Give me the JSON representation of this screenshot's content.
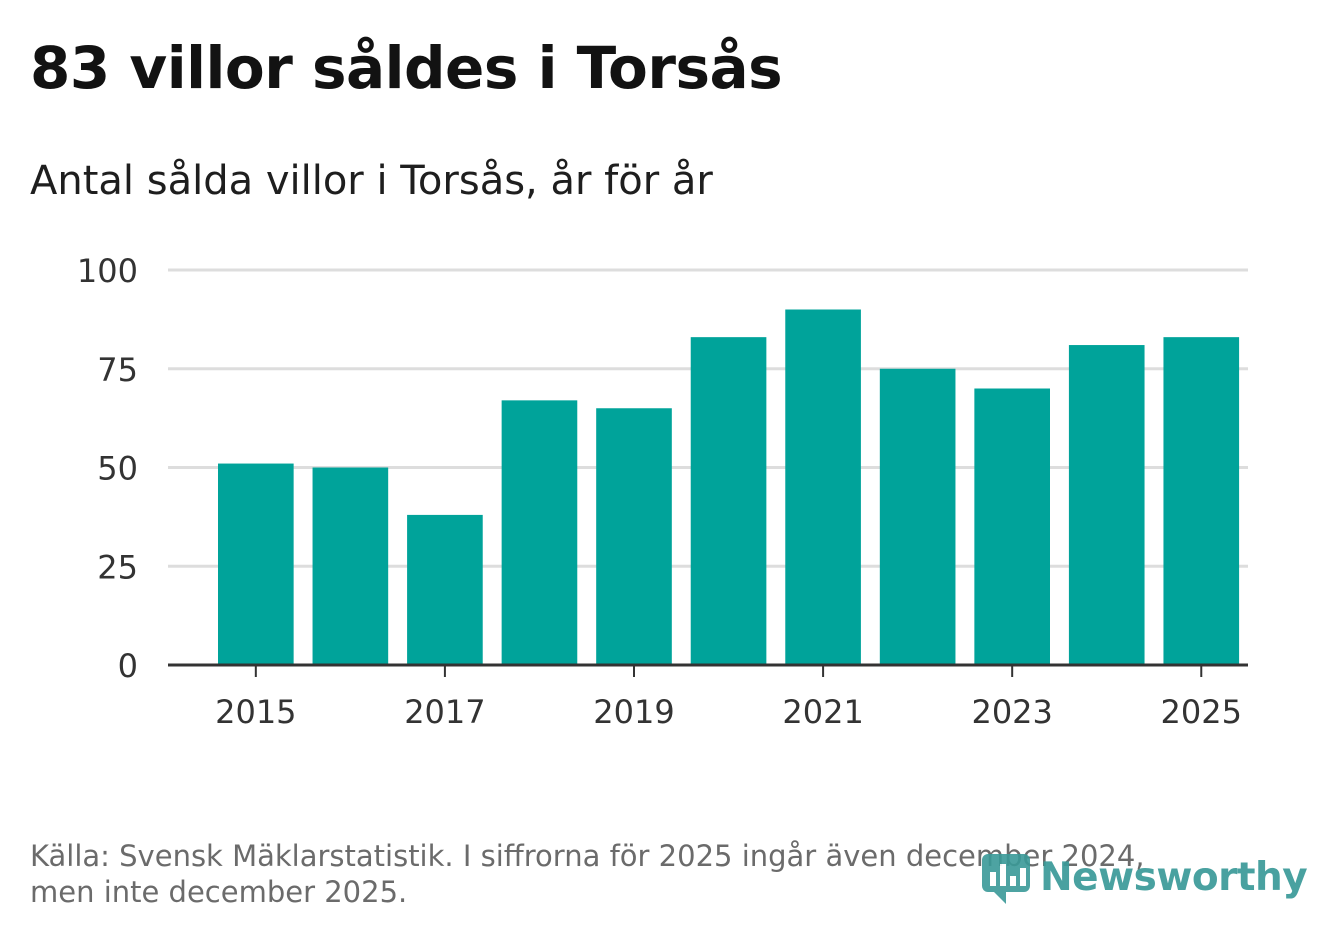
{
  "header": {
    "title": "83 villor såldes i Torsås",
    "subtitle": "Antal sålda villor i Torsås, år för år"
  },
  "footer": {
    "source_line1": "Källa: Svensk Mäklarstatistik. I siffrorna för 2025 ingår även december 2024,",
    "source_line2": "men inte december 2025."
  },
  "brand": {
    "name": "Newsworthy",
    "icon": "newsworthy-logo-icon",
    "color": "#3a9a98"
  },
  "colors": {
    "bar": "#00a39a",
    "grid": "#dddddd",
    "axis": "#333333",
    "text": "#333333"
  },
  "chart_data": {
    "type": "bar",
    "title": "83 villor såldes i Torsås",
    "subtitle": "Antal sålda villor i Torsås, år för år",
    "xlabel": "",
    "ylabel": "",
    "categories": [
      "2015",
      "2016",
      "2017",
      "2018",
      "2019",
      "2020",
      "2021",
      "2022",
      "2023",
      "2024",
      "2025"
    ],
    "values": [
      51,
      50,
      38,
      67,
      65,
      83,
      90,
      75,
      70,
      81,
      83
    ],
    "x_tick_labels": [
      "2015",
      "2017",
      "2019",
      "2021",
      "2023",
      "2025"
    ],
    "y_ticks": [
      0,
      25,
      50,
      75,
      100
    ],
    "ylim": [
      0,
      100
    ],
    "grid": true,
    "legend": "none"
  }
}
